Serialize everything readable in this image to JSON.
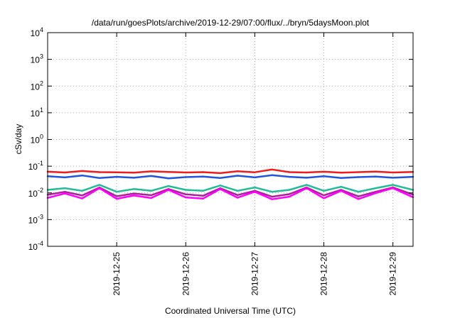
{
  "chart_data": {
    "type": "line",
    "title": "/data/run/goesPlots/archive/2019-12-29/07:00/flux/../bryn/5daysMoon.plot",
    "xlabel": "Coordinated Universal Time (UTC)",
    "ylabel": "cSv/day",
    "yscale": "log",
    "ylim": [
      0.0001,
      10000
    ],
    "xlim": [
      "2019-12-24 00:00",
      "2019-12-29 07:00"
    ],
    "x_ticks": [
      "2019-12-25",
      "2019-12-26",
      "2019-12-27",
      "2019-12-28",
      "2019-12-29"
    ],
    "y_ticks": [
      {
        "base": "10",
        "exp": "-4"
      },
      {
        "base": "10",
        "exp": "-3"
      },
      {
        "base": "10",
        "exp": "-2"
      },
      {
        "base": "10",
        "exp": "-1"
      },
      {
        "base": "10",
        "exp": "0"
      },
      {
        "base": "10",
        "exp": "1"
      },
      {
        "base": "10",
        "exp": "2"
      },
      {
        "base": "10",
        "exp": "3"
      },
      {
        "base": "10",
        "exp": "4"
      }
    ],
    "grid": true,
    "series": [
      {
        "color": "#ee1c1c",
        "x": [
          "2019-12-24 00:00",
          "2019-12-24 06:00",
          "2019-12-24 12:00",
          "2019-12-24 18:00",
          "2019-12-25 00:00",
          "2019-12-25 06:00",
          "2019-12-25 12:00",
          "2019-12-25 18:00",
          "2019-12-26 00:00",
          "2019-12-26 06:00",
          "2019-12-26 12:00",
          "2019-12-26 18:00",
          "2019-12-27 00:00",
          "2019-12-27 06:00",
          "2019-12-27 12:00",
          "2019-12-27 18:00",
          "2019-12-28 00:00",
          "2019-12-28 06:00",
          "2019-12-28 12:00",
          "2019-12-28 18:00",
          "2019-12-29 00:00",
          "2019-12-29 07:00"
        ],
        "values": [
          0.062,
          0.058,
          0.066,
          0.06,
          0.059,
          0.057,
          0.064,
          0.061,
          0.058,
          0.06,
          0.055,
          0.065,
          0.059,
          0.075,
          0.06,
          0.058,
          0.062,
          0.057,
          0.06,
          0.063,
          0.058,
          0.061
        ]
      },
      {
        "color": "#2255dd",
        "x": [
          "2019-12-24 00:00",
          "2019-12-24 06:00",
          "2019-12-24 12:00",
          "2019-12-24 18:00",
          "2019-12-25 00:00",
          "2019-12-25 06:00",
          "2019-12-25 12:00",
          "2019-12-25 18:00",
          "2019-12-26 00:00",
          "2019-12-26 06:00",
          "2019-12-26 12:00",
          "2019-12-26 18:00",
          "2019-12-27 00:00",
          "2019-12-27 06:00",
          "2019-12-27 12:00",
          "2019-12-27 18:00",
          "2019-12-28 00:00",
          "2019-12-28 06:00",
          "2019-12-28 12:00",
          "2019-12-28 18:00",
          "2019-12-29 00:00",
          "2019-12-29 07:00"
        ],
        "values": [
          0.042,
          0.038,
          0.045,
          0.036,
          0.04,
          0.037,
          0.043,
          0.035,
          0.039,
          0.041,
          0.036,
          0.044,
          0.038,
          0.046,
          0.04,
          0.037,
          0.042,
          0.036,
          0.039,
          0.041,
          0.037,
          0.04
        ]
      },
      {
        "color": "#22bb99",
        "x": [
          "2019-12-24 00:00",
          "2019-12-24 06:00",
          "2019-12-24 12:00",
          "2019-12-24 18:00",
          "2019-12-25 00:00",
          "2019-12-25 06:00",
          "2019-12-25 12:00",
          "2019-12-25 18:00",
          "2019-12-26 00:00",
          "2019-12-26 06:00",
          "2019-12-26 12:00",
          "2019-12-26 18:00",
          "2019-12-27 00:00",
          "2019-12-27 06:00",
          "2019-12-27 12:00",
          "2019-12-27 18:00",
          "2019-12-28 00:00",
          "2019-12-28 06:00",
          "2019-12-28 12:00",
          "2019-12-28 18:00",
          "2019-12-29 00:00",
          "2019-12-29 07:00"
        ],
        "values": [
          0.013,
          0.015,
          0.012,
          0.02,
          0.011,
          0.014,
          0.012,
          0.018,
          0.013,
          0.012,
          0.019,
          0.012,
          0.016,
          0.011,
          0.013,
          0.02,
          0.012,
          0.017,
          0.011,
          0.015,
          0.02,
          0.013
        ]
      },
      {
        "color": "#aa2299",
        "x": [
          "2019-12-24 00:00",
          "2019-12-24 06:00",
          "2019-12-24 12:00",
          "2019-12-24 18:00",
          "2019-12-25 00:00",
          "2019-12-25 06:00",
          "2019-12-25 12:00",
          "2019-12-25 18:00",
          "2019-12-26 00:00",
          "2019-12-26 06:00",
          "2019-12-26 12:00",
          "2019-12-26 18:00",
          "2019-12-27 00:00",
          "2019-12-27 06:00",
          "2019-12-27 12:00",
          "2019-12-27 18:00",
          "2019-12-28 00:00",
          "2019-12-28 06:00",
          "2019-12-28 12:00",
          "2019-12-28 18:00",
          "2019-12-29 00:00",
          "2019-12-29 07:00"
        ],
        "values": [
          0.0085,
          0.011,
          0.008,
          0.016,
          0.0075,
          0.0095,
          0.0082,
          0.014,
          0.0088,
          0.0078,
          0.015,
          0.0083,
          0.012,
          0.0072,
          0.009,
          0.016,
          0.0081,
          0.013,
          0.0074,
          0.011,
          0.016,
          0.0086
        ]
      },
      {
        "color": "#ff00ff",
        "x": [
          "2019-12-24 00:00",
          "2019-12-24 06:00",
          "2019-12-24 12:00",
          "2019-12-24 18:00",
          "2019-12-25 00:00",
          "2019-12-25 06:00",
          "2019-12-25 12:00",
          "2019-12-25 18:00",
          "2019-12-26 00:00",
          "2019-12-26 06:00",
          "2019-12-26 12:00",
          "2019-12-26 18:00",
          "2019-12-27 00:00",
          "2019-12-27 06:00",
          "2019-12-27 12:00",
          "2019-12-27 18:00",
          "2019-12-28 00:00",
          "2019-12-28 06:00",
          "2019-12-28 12:00",
          "2019-12-28 18:00",
          "2019-12-29 00:00",
          "2019-12-29 07:00"
        ],
        "values": [
          0.0065,
          0.0095,
          0.0062,
          0.015,
          0.006,
          0.008,
          0.0064,
          0.013,
          0.0068,
          0.0061,
          0.014,
          0.0066,
          0.011,
          0.0058,
          0.0072,
          0.015,
          0.0063,
          0.012,
          0.0059,
          0.0098,
          0.015,
          0.0069
        ]
      }
    ]
  }
}
